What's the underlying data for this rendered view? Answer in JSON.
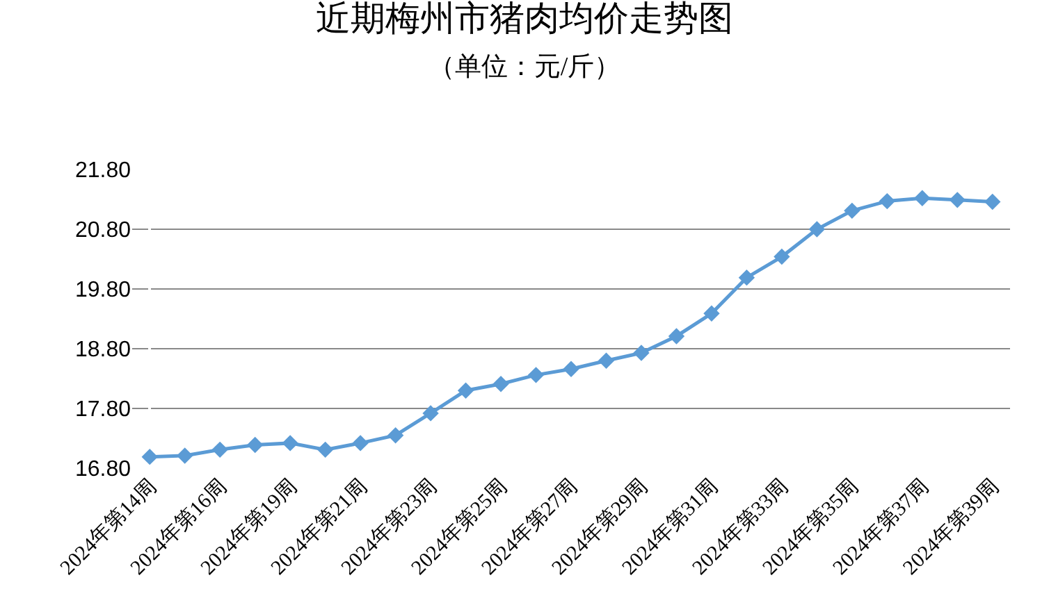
{
  "chart_data": {
    "type": "line",
    "title": "近期梅州市猪肉均价走势图",
    "subtitle": "（单位：元/斤）",
    "categories": [
      "2024年第14周",
      null,
      "2024年第16周",
      null,
      "2024年第19周",
      null,
      "2024年第21周",
      null,
      "2024年第23周",
      null,
      "2024年第25周",
      null,
      "2024年第27周",
      null,
      "2024年第29周",
      null,
      "2024年第31周",
      null,
      "2024年第33周",
      null,
      "2024年第35周",
      null,
      "2024年第37周",
      null,
      "2024年第39周"
    ],
    "series": [
      {
        "color": "#5b9bd5",
        "values": [
          16.99,
          17.01,
          17.11,
          17.19,
          17.22,
          17.11,
          17.22,
          17.35,
          17.72,
          18.1,
          18.21,
          18.36,
          18.46,
          18.6,
          18.73,
          19.01,
          19.39,
          19.99,
          20.34,
          20.8,
          21.11,
          21.27,
          21.32,
          21.29,
          21.26
        ]
      }
    ],
    "ylim": [
      16.8,
      21.8
    ],
    "yticks": [
      {
        "value": 16.8,
        "label": "16.80"
      },
      {
        "value": 17.8,
        "label": "17.80"
      },
      {
        "value": 18.8,
        "label": "18.80"
      },
      {
        "value": 19.8,
        "label": "19.80"
      },
      {
        "value": 20.8,
        "label": "20.80"
      },
      {
        "value": 21.8,
        "label": "21.80"
      }
    ],
    "grid": "y",
    "legend": false,
    "marker": "diamond",
    "line_style": "solid"
  }
}
